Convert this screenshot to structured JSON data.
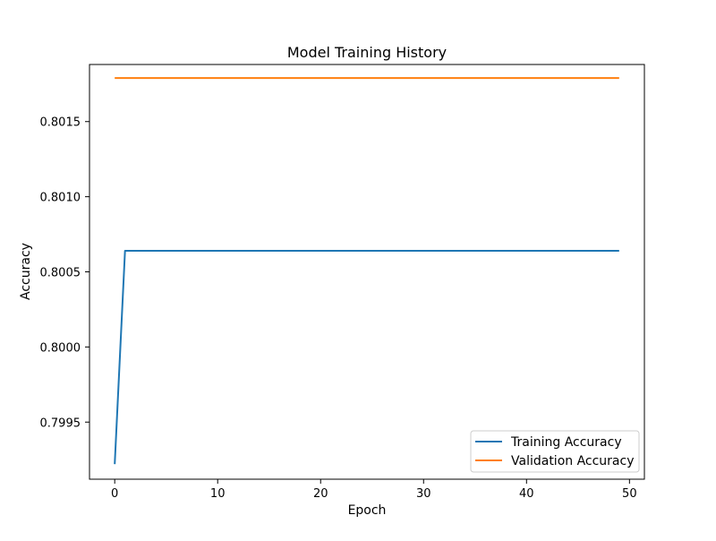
{
  "chart_data": {
    "type": "line",
    "title": "Model Training History",
    "xlabel": "Epoch",
    "ylabel": "Accuracy",
    "xlim": [
      -2.45,
      51.45
    ],
    "ylim": [
      0.79912,
      0.80188
    ],
    "xticks": [
      0,
      10,
      20,
      30,
      40,
      50
    ],
    "yticks": [
      0.7995,
      0.8,
      0.8005,
      0.801,
      0.8015
    ],
    "ytick_labels": [
      "0.7995",
      "0.8000",
      "0.8005",
      "0.8010",
      "0.8015"
    ],
    "grid": false,
    "legend_position": "bottom-right",
    "series": [
      {
        "name": "Training Accuracy",
        "color": "#1f77b4",
        "x": [
          0,
          1,
          2,
          3,
          4,
          5,
          6,
          7,
          8,
          9,
          10,
          11,
          12,
          13,
          14,
          15,
          16,
          17,
          18,
          19,
          20,
          21,
          22,
          23,
          24,
          25,
          26,
          27,
          28,
          29,
          30,
          31,
          32,
          33,
          34,
          35,
          36,
          37,
          38,
          39,
          40,
          41,
          42,
          43,
          44,
          45,
          46,
          47,
          48,
          49
        ],
        "y": [
          0.79922,
          0.80064,
          0.80064,
          0.80064,
          0.80064,
          0.80064,
          0.80064,
          0.80064,
          0.80064,
          0.80064,
          0.80064,
          0.80064,
          0.80064,
          0.80064,
          0.80064,
          0.80064,
          0.80064,
          0.80064,
          0.80064,
          0.80064,
          0.80064,
          0.80064,
          0.80064,
          0.80064,
          0.80064,
          0.80064,
          0.80064,
          0.80064,
          0.80064,
          0.80064,
          0.80064,
          0.80064,
          0.80064,
          0.80064,
          0.80064,
          0.80064,
          0.80064,
          0.80064,
          0.80064,
          0.80064,
          0.80064,
          0.80064,
          0.80064,
          0.80064,
          0.80064,
          0.80064,
          0.80064,
          0.80064,
          0.80064,
          0.80064
        ]
      },
      {
        "name": "Validation Accuracy",
        "color": "#ff7f0e",
        "x": [
          0,
          1,
          2,
          3,
          4,
          5,
          6,
          7,
          8,
          9,
          10,
          11,
          12,
          13,
          14,
          15,
          16,
          17,
          18,
          19,
          20,
          21,
          22,
          23,
          24,
          25,
          26,
          27,
          28,
          29,
          30,
          31,
          32,
          33,
          34,
          35,
          36,
          37,
          38,
          39,
          40,
          41,
          42,
          43,
          44,
          45,
          46,
          47,
          48,
          49
        ],
        "y": [
          0.80179,
          0.80179,
          0.80179,
          0.80179,
          0.80179,
          0.80179,
          0.80179,
          0.80179,
          0.80179,
          0.80179,
          0.80179,
          0.80179,
          0.80179,
          0.80179,
          0.80179,
          0.80179,
          0.80179,
          0.80179,
          0.80179,
          0.80179,
          0.80179,
          0.80179,
          0.80179,
          0.80179,
          0.80179,
          0.80179,
          0.80179,
          0.80179,
          0.80179,
          0.80179,
          0.80179,
          0.80179,
          0.80179,
          0.80179,
          0.80179,
          0.80179,
          0.80179,
          0.80179,
          0.80179,
          0.80179,
          0.80179,
          0.80179,
          0.80179,
          0.80179,
          0.80179,
          0.80179,
          0.80179,
          0.80179,
          0.80179,
          0.80179
        ]
      }
    ]
  }
}
